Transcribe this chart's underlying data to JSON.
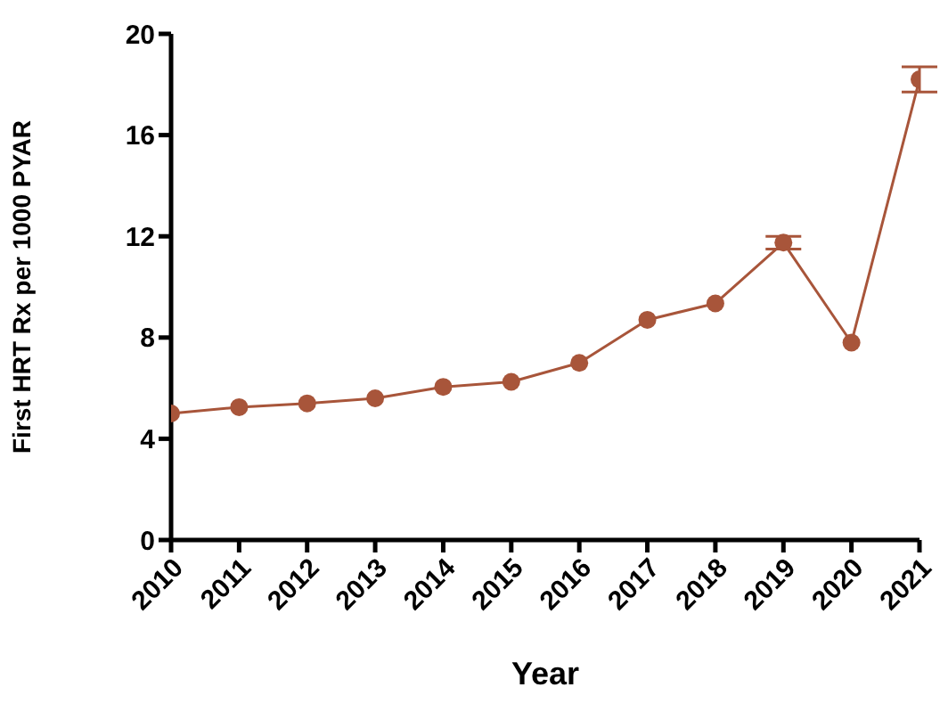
{
  "chart_data": {
    "type": "line",
    "xlabel": "Year",
    "ylabel": "First HRT Rx per 1000 PYAR",
    "x": [
      2010,
      2011,
      2012,
      2013,
      2014,
      2015,
      2016,
      2017,
      2018,
      2019,
      2020,
      2021
    ],
    "xlim": [
      2010,
      2021
    ],
    "xticks": [
      2010,
      2011,
      2012,
      2013,
      2014,
      2015,
      2016,
      2017,
      2018,
      2019,
      2020,
      2021
    ],
    "ylim": [
      0,
      20
    ],
    "yticks": [
      0,
      4,
      8,
      12,
      16,
      20
    ],
    "series": [
      {
        "color": "#a8553a",
        "values": [
          5.0,
          5.25,
          5.4,
          5.6,
          6.05,
          6.25,
          7.0,
          8.7,
          9.35,
          11.75,
          7.8,
          18.2
        ],
        "errors": [
          null,
          null,
          null,
          null,
          null,
          null,
          null,
          null,
          null,
          0.25,
          null,
          0.5
        ]
      }
    ],
    "marker": "circle",
    "line_style": "solid"
  }
}
